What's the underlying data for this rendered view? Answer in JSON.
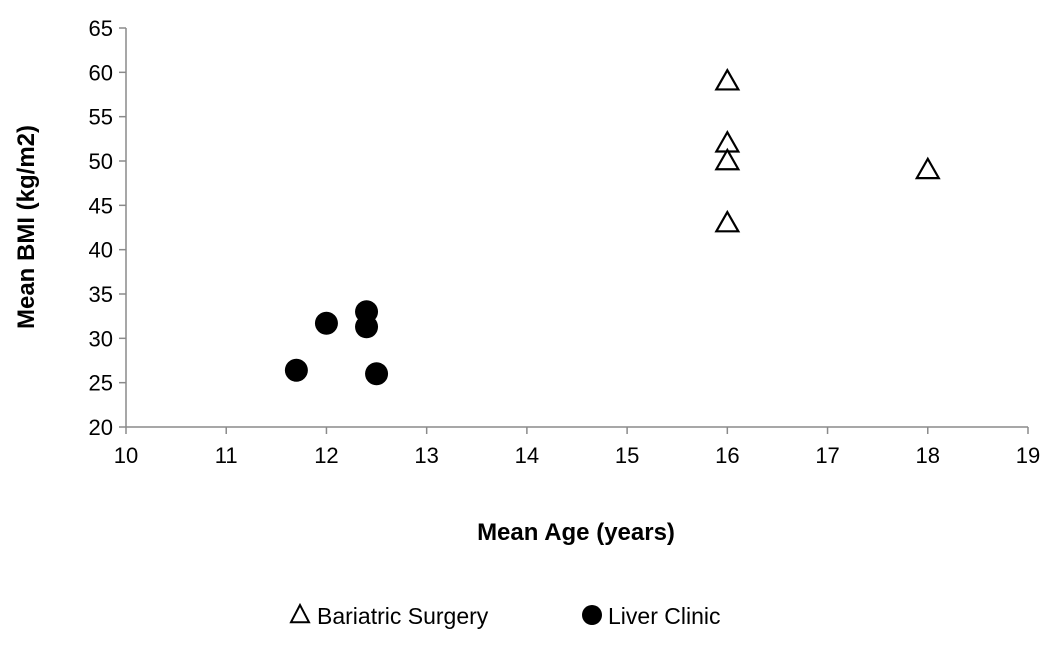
{
  "chart_data": {
    "type": "scatter",
    "title": "",
    "xlabel": "Mean Age (years)",
    "ylabel": "Mean BMI (kg/m2)",
    "xlim": [
      10,
      19
    ],
    "ylim": [
      20,
      65
    ],
    "x_ticks": [
      "10",
      "11",
      "12",
      "13",
      "14",
      "15",
      "16",
      "17",
      "18",
      "19"
    ],
    "y_ticks": [
      "20",
      "25",
      "30",
      "35",
      "40",
      "45",
      "50",
      "55",
      "60",
      "65"
    ],
    "grid": false,
    "legend_position": "bottom",
    "series": [
      {
        "name": "Bariatric Surgery",
        "marker": "open-triangle",
        "color": "#000000",
        "points": [
          {
            "x": 16,
            "y": 59
          },
          {
            "x": 16,
            "y": 52
          },
          {
            "x": 16,
            "y": 50
          },
          {
            "x": 16,
            "y": 43
          },
          {
            "x": 18,
            "y": 49
          }
        ]
      },
      {
        "name": "Liver Clinic",
        "marker": "filled-circle",
        "color": "#000000",
        "points": [
          {
            "x": 11.7,
            "y": 26.4
          },
          {
            "x": 12.0,
            "y": 31.7
          },
          {
            "x": 12.4,
            "y": 33.0
          },
          {
            "x": 12.4,
            "y": 31.3
          },
          {
            "x": 12.5,
            "y": 26.0
          }
        ]
      }
    ]
  }
}
